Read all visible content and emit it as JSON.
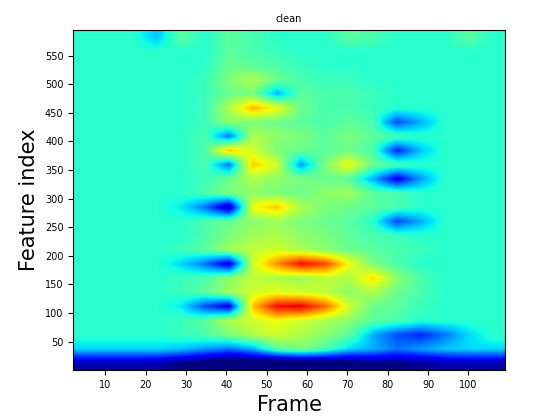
{
  "chart_data": {
    "type": "heatmap",
    "title": "clean",
    "x_label": "Frame",
    "y_label": "Feature index",
    "xlim": [
      2,
      109
    ],
    "ylim": [
      0.5,
      594.5
    ],
    "xticks": [
      10,
      20,
      30,
      40,
      50,
      60,
      70,
      80,
      90,
      100
    ],
    "yticks": [
      50,
      100,
      150,
      200,
      250,
      300,
      350,
      400,
      450,
      500,
      550
    ],
    "color": "jet",
    "color_range": [
      -2,
      3
    ],
    "cells": [
      [
        -1.8,
        -1.8,
        -1.8,
        -1.8,
        -2,
        -2.2,
        -2.4,
        -2.4,
        -2.5,
        -2.4,
        -2.3,
        -2.2,
        -2,
        -2,
        -1.9,
        -1.8,
        -1.8,
        -1.8
      ],
      [
        -0.3,
        -0.3,
        -0.3,
        -0.3,
        -0.4,
        -0.6,
        -0.8,
        -0.5,
        0.3,
        0.5,
        0.2,
        -0.3,
        -0.5,
        -0.8,
        -0.6,
        -0.4,
        -0.3,
        -0.3
      ],
      [
        0,
        0,
        0,
        0,
        0.1,
        0.2,
        0.5,
        0.8,
        1,
        0.8,
        0.6,
        0.3,
        -0.5,
        -1,
        -1.2,
        -0.8,
        -0.3,
        0
      ],
      [
        0,
        0,
        0,
        0,
        0.1,
        0.3,
        0.8,
        1,
        1.2,
        1,
        0.8,
        0.6,
        0.3,
        0.2,
        0,
        0,
        0,
        0
      ],
      [
        0,
        0,
        0,
        0,
        -0.2,
        -1,
        -1.5,
        1.5,
        2.5,
        2.6,
        2,
        1,
        0.4,
        0.3,
        0.1,
        0,
        0,
        0
      ],
      [
        0,
        0,
        0,
        0,
        0.1,
        0.3,
        0.7,
        1,
        1.1,
        1,
        0.9,
        0.6,
        0.8,
        0.4,
        0.2,
        0,
        0,
        0
      ],
      [
        0,
        0,
        0,
        0,
        0.1,
        0.2,
        0.6,
        0.9,
        0.8,
        0.7,
        0.9,
        0.8,
        1.4,
        0.6,
        0.2,
        0,
        0,
        0
      ],
      [
        0,
        0,
        0,
        0,
        -0.3,
        -0.8,
        -1.6,
        1,
        1.8,
        2.5,
        2.2,
        1.2,
        0.5,
        0.2,
        0,
        0,
        0,
        0
      ],
      [
        0,
        0,
        0,
        0,
        0.1,
        0.3,
        0.7,
        0.9,
        1,
        0.8,
        0.6,
        0.4,
        0.3,
        0.2,
        0.1,
        0,
        0,
        0
      ],
      [
        0,
        0,
        0,
        0,
        0,
        0.2,
        0.5,
        0.7,
        0.8,
        0.6,
        0.5,
        0.3,
        0.2,
        0.1,
        0,
        0,
        0,
        0
      ],
      [
        0,
        0,
        0,
        0,
        0,
        0.2,
        0.4,
        0.6,
        0.7,
        0.5,
        0.4,
        0.3,
        0,
        -1,
        -0.5,
        0,
        0,
        0
      ],
      [
        0,
        0,
        0,
        0,
        -0.2,
        -0.8,
        -1.8,
        1.2,
        1.5,
        0.8,
        0.5,
        0.4,
        0.3,
        0.2,
        0,
        0,
        0,
        0
      ],
      [
        0,
        0,
        0,
        0,
        0,
        0.2,
        0.5,
        0.6,
        0.5,
        0.4,
        0.6,
        0.7,
        0.3,
        0.2,
        0,
        0,
        0,
        0
      ],
      [
        0,
        0,
        0,
        0,
        0,
        0.1,
        0.4,
        0.8,
        0.6,
        0.5,
        0.4,
        0.3,
        -0.5,
        -1.5,
        -0.6,
        0,
        0,
        0
      ],
      [
        0,
        0,
        0,
        0,
        0,
        0.2,
        -0.8,
        1.5,
        1,
        -0.6,
        0.5,
        1.2,
        0.4,
        0.2,
        0,
        0,
        0,
        0
      ],
      [
        0,
        0,
        0,
        0,
        0,
        0.2,
        1.5,
        1,
        0.5,
        0.4,
        0.3,
        0.4,
        0.2,
        -1.2,
        -0.4,
        0,
        0,
        0
      ],
      [
        0,
        0,
        0,
        0,
        0,
        0.2,
        -0.8,
        0.8,
        0.6,
        0.5,
        0.3,
        0.5,
        0.3,
        0.2,
        0,
        0,
        0,
        0
      ],
      [
        0,
        0,
        0,
        0,
        0,
        0.1,
        0.6,
        0.5,
        0.4,
        0.3,
        0.2,
        0.3,
        0.2,
        -1,
        -0.5,
        0,
        0,
        0
      ],
      [
        0,
        0,
        0,
        0,
        0,
        0.1,
        0.8,
        1.6,
        1.2,
        0.4,
        0.2,
        0.2,
        0.1,
        0,
        0,
        0,
        0,
        0
      ],
      [
        0,
        0,
        0,
        0,
        0,
        0.1,
        0.4,
        0.5,
        -0.5,
        0.3,
        0.2,
        0.2,
        0.1,
        0,
        0,
        0,
        0,
        0
      ],
      [
        0,
        0,
        0,
        0,
        0,
        0.1,
        0.5,
        0.8,
        0.4,
        0.2,
        0.1,
        0.1,
        0,
        0,
        0,
        0,
        0,
        0
      ],
      [
        0,
        0,
        0,
        0,
        0,
        0,
        0.4,
        0.3,
        0.2,
        0.1,
        0,
        0,
        0,
        0,
        0,
        0,
        0,
        0
      ],
      [
        0,
        0,
        0,
        0,
        0,
        0,
        0.3,
        0.2,
        0.1,
        0,
        0,
        0,
        0,
        0,
        0,
        0,
        0,
        0
      ],
      [
        0,
        0,
        0,
        -0.4,
        0.3,
        0,
        0.3,
        0.2,
        0,
        0,
        0,
        0.3,
        0.2,
        0,
        0,
        0,
        0.3,
        0
      ]
    ]
  }
}
